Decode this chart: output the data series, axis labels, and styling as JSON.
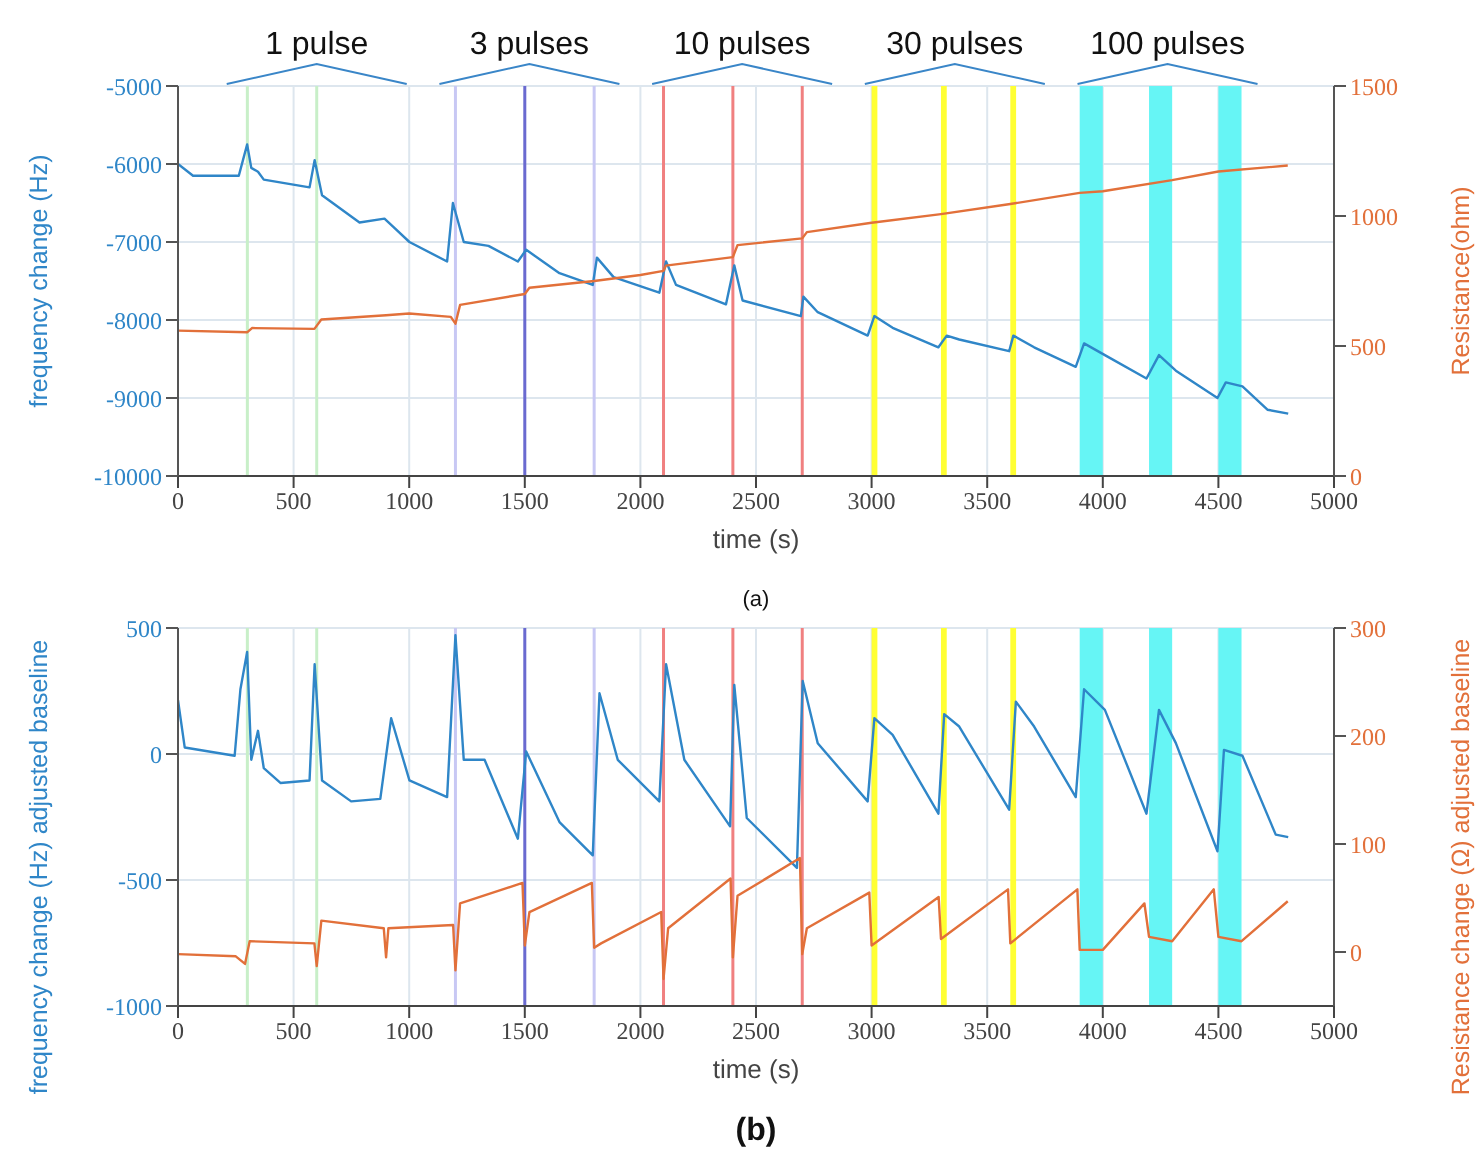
{
  "chart_data": [
    {
      "type": "line",
      "xlabel": "time (s)",
      "ylabel": "frequency change (Hz)",
      "y2label": "Resistance(ohm)",
      "xlim": [
        0,
        5000
      ],
      "xticks": [
        0,
        500,
        1000,
        1500,
        2000,
        2500,
        3000,
        3500,
        4000,
        4500,
        5000
      ],
      "ylim": [
        -10000,
        -5000
      ],
      "yticks": [
        -10000,
        -9000,
        -8000,
        -7000,
        -6000,
        -5000
      ],
      "y2lim": [
        0,
        1500
      ],
      "y2ticks": [
        0,
        500,
        1000,
        1500
      ],
      "grid": true,
      "marker": "none",
      "line_style": "solid",
      "annotations": [
        "1 pulse",
        "3 pulses",
        "10 pulses",
        "30 pulses",
        "100 pulses"
      ],
      "subtitle": "(a)",
      "ref_lines": [
        {
          "axis": "x",
          "value": 300,
          "color": "#c8efc8"
        },
        {
          "axis": "x",
          "value": 600,
          "color": "#c8efc8"
        },
        {
          "axis": "x",
          "value": 1200,
          "color": "#c8c8f4"
        },
        {
          "axis": "x",
          "value": 1500,
          "color": "#6a6ad0"
        },
        {
          "axis": "x",
          "value": 1800,
          "color": "#c8c8f4"
        },
        {
          "axis": "x",
          "value": 2100,
          "color": "#f08080"
        },
        {
          "axis": "x",
          "value": 2400,
          "color": "#f08080"
        },
        {
          "axis": "x",
          "value": 2700,
          "color": "#f08080"
        }
      ],
      "bands": [
        {
          "axis": "x",
          "from": 3000,
          "to": 3025,
          "color": "#ffff33"
        },
        {
          "axis": "x",
          "from": 3300,
          "to": 3325,
          "color": "#ffff33"
        },
        {
          "axis": "x",
          "from": 3600,
          "to": 3625,
          "color": "#ffff33"
        },
        {
          "axis": "x",
          "from": 3900,
          "to": 4000,
          "color": "#66f5f5"
        },
        {
          "axis": "x",
          "from": 4200,
          "to": 4300,
          "color": "#66f5f5"
        },
        {
          "axis": "x",
          "from": 4500,
          "to": 4600,
          "color": "#66f5f5"
        }
      ],
      "series": [
        {
          "color": "#2f86c8",
          "x": [
            0,
            65,
            263,
            281,
            299,
            317,
            346,
            371,
            569,
            591,
            623,
            785,
            893,
            929,
            1001,
            1164,
            1189,
            1236,
            1343,
            1470,
            1506,
            1650,
            1794,
            1812,
            1884,
            2082,
            2111,
            2154,
            2370,
            2406,
            2442,
            2694,
            2705,
            2767,
            2983,
            3012,
            3091,
            3289,
            3325,
            3379,
            3595,
            3613,
            3703,
            3883,
            3919,
            4009,
            4189,
            4243,
            4316,
            4496,
            4532,
            4604,
            4712,
            4802
          ],
          "values": [
            -6000,
            -6150,
            -6150,
            -5950,
            -5750,
            -6050,
            -6100,
            -6200,
            -6300,
            -5950,
            -6400,
            -6750,
            -6700,
            -6800,
            -7000,
            -7250,
            -6500,
            -7000,
            -7050,
            -7250,
            -7100,
            -7400,
            -7550,
            -7200,
            -7450,
            -7650,
            -7250,
            -7550,
            -7800,
            -7300,
            -7750,
            -7950,
            -7700,
            -7900,
            -8200,
            -7950,
            -8100,
            -8350,
            -8200,
            -8250,
            -8400,
            -8200,
            -8350,
            -8600,
            -8300,
            -8450,
            -8750,
            -8450,
            -8650,
            -9000,
            -8800,
            -8850,
            -9150,
            -9200
          ]
        },
        {
          "color": "#e2703a",
          "axis": "y2",
          "x": [
            0,
            300,
            320,
            590,
            620,
            900,
            1000,
            1180,
            1200,
            1220,
            1500,
            1520,
            1800,
            2000,
            2100,
            2110,
            2400,
            2420,
            2700,
            2720,
            3000,
            3300,
            3600,
            3900,
            4000,
            4300,
            4500,
            4800
          ],
          "values": [
            559,
            553,
            569,
            566,
            602,
            618,
            625,
            612,
            586,
            658,
            700,
            724,
            750,
            773,
            789,
            809,
            842,
            888,
            914,
            938,
            974,
            1007,
            1046,
            1089,
            1095,
            1138,
            1171,
            1194
          ]
        }
      ]
    },
    {
      "type": "line",
      "xlabel": "time (s)",
      "ylabel": "frequency change (Hz) adjusted baseline",
      "y2label": "Resistance change (Ω) adjusted baseline",
      "xlim": [
        0,
        5000
      ],
      "xticks": [
        0,
        500,
        1000,
        1500,
        2000,
        2500,
        3000,
        3500,
        4000,
        4500,
        5000
      ],
      "ylim": [
        -1000,
        500
      ],
      "yticks": [
        -1000,
        -500,
        0,
        500
      ],
      "y2lim": [
        -50,
        300
      ],
      "y2ticks": [
        0,
        100,
        200,
        300
      ],
      "grid": true,
      "marker": "none",
      "line_style": "solid",
      "subtitle": "(b)",
      "ref_lines": [
        {
          "axis": "x",
          "value": 300,
          "color": "#c8efc8"
        },
        {
          "axis": "x",
          "value": 600,
          "color": "#c8efc8"
        },
        {
          "axis": "x",
          "value": 1200,
          "color": "#c8c8f4"
        },
        {
          "axis": "x",
          "value": 1500,
          "color": "#6a6ad0"
        },
        {
          "axis": "x",
          "value": 1800,
          "color": "#c8c8f4"
        },
        {
          "axis": "x",
          "value": 2100,
          "color": "#f08080"
        },
        {
          "axis": "x",
          "value": 2400,
          "color": "#f08080"
        },
        {
          "axis": "x",
          "value": 2700,
          "color": "#f08080"
        }
      ],
      "bands": [
        {
          "axis": "x",
          "from": 3000,
          "to": 3025,
          "color": "#ffff33"
        },
        {
          "axis": "x",
          "from": 3300,
          "to": 3325,
          "color": "#ffff33"
        },
        {
          "axis": "x",
          "from": 3600,
          "to": 3625,
          "color": "#ffff33"
        },
        {
          "axis": "x",
          "from": 3900,
          "to": 4000,
          "color": "#66f5f5"
        },
        {
          "axis": "x",
          "from": 4200,
          "to": 4300,
          "color": "#66f5f5"
        },
        {
          "axis": "x",
          "from": 4500,
          "to": 4600,
          "color": "#66f5f5"
        }
      ],
      "series": [
        {
          "color": "#2f86c8",
          "x": [
            0,
            29,
            245,
            270,
            299,
            317,
            346,
            371,
            443,
            569,
            591,
            623,
            749,
            875,
            922,
            1001,
            1164,
            1200,
            1236,
            1326,
            1470,
            1506,
            1650,
            1794,
            1823,
            1902,
            2082,
            2111,
            2190,
            2388,
            2406,
            2460,
            2677,
            2702,
            2767,
            2983,
            3012,
            3091,
            3289,
            3314,
            3379,
            3595,
            3624,
            3703,
            3883,
            3919,
            4009,
            4189,
            4243,
            4316,
            4496,
            4524,
            4604,
            4748,
            4802
          ],
          "values": [
            214,
            26,
            -7,
            257,
            405,
            -23,
            92,
            -56,
            -115,
            -105,
            356,
            -105,
            -188,
            -178,
            142,
            -105,
            -171,
            471,
            -23,
            -23,
            -336,
            10,
            -270,
            -402,
            241,
            -23,
            -188,
            356,
            -23,
            -287,
            274,
            -254,
            -452,
            290,
            43,
            -188,
            142,
            76,
            -237,
            158,
            109,
            -221,
            208,
            109,
            -171,
            257,
            175,
            -237,
            175,
            43,
            -386,
            16,
            -7,
            -320,
            -330
          ]
        },
        {
          "color": "#e2703a",
          "axis": "y2",
          "x": [
            0,
            250,
            290,
            310,
            590,
            600,
            620,
            890,
            900,
            910,
            1190,
            1200,
            1220,
            1490,
            1500,
            1520,
            1790,
            1800,
            1830,
            2090,
            2100,
            2120,
            2390,
            2400,
            2420,
            2690,
            2700,
            2720,
            2990,
            3000,
            3290,
            3300,
            3590,
            3600,
            3890,
            3900,
            4000,
            4180,
            4200,
            4300,
            4480,
            4500,
            4600,
            4800
          ],
          "values": [
            -2,
            -4,
            -11,
            10,
            8,
            -13,
            29,
            22,
            -5,
            22,
            25,
            -17,
            45,
            64,
            6,
            37,
            64,
            4,
            8,
            37,
            -25,
            22,
            68,
            -5,
            52,
            87,
            -2,
            22,
            55,
            6,
            51,
            12,
            58,
            8,
            58,
            2,
            2,
            45,
            14,
            10,
            58,
            14,
            10,
            47
          ]
        }
      ]
    }
  ]
}
